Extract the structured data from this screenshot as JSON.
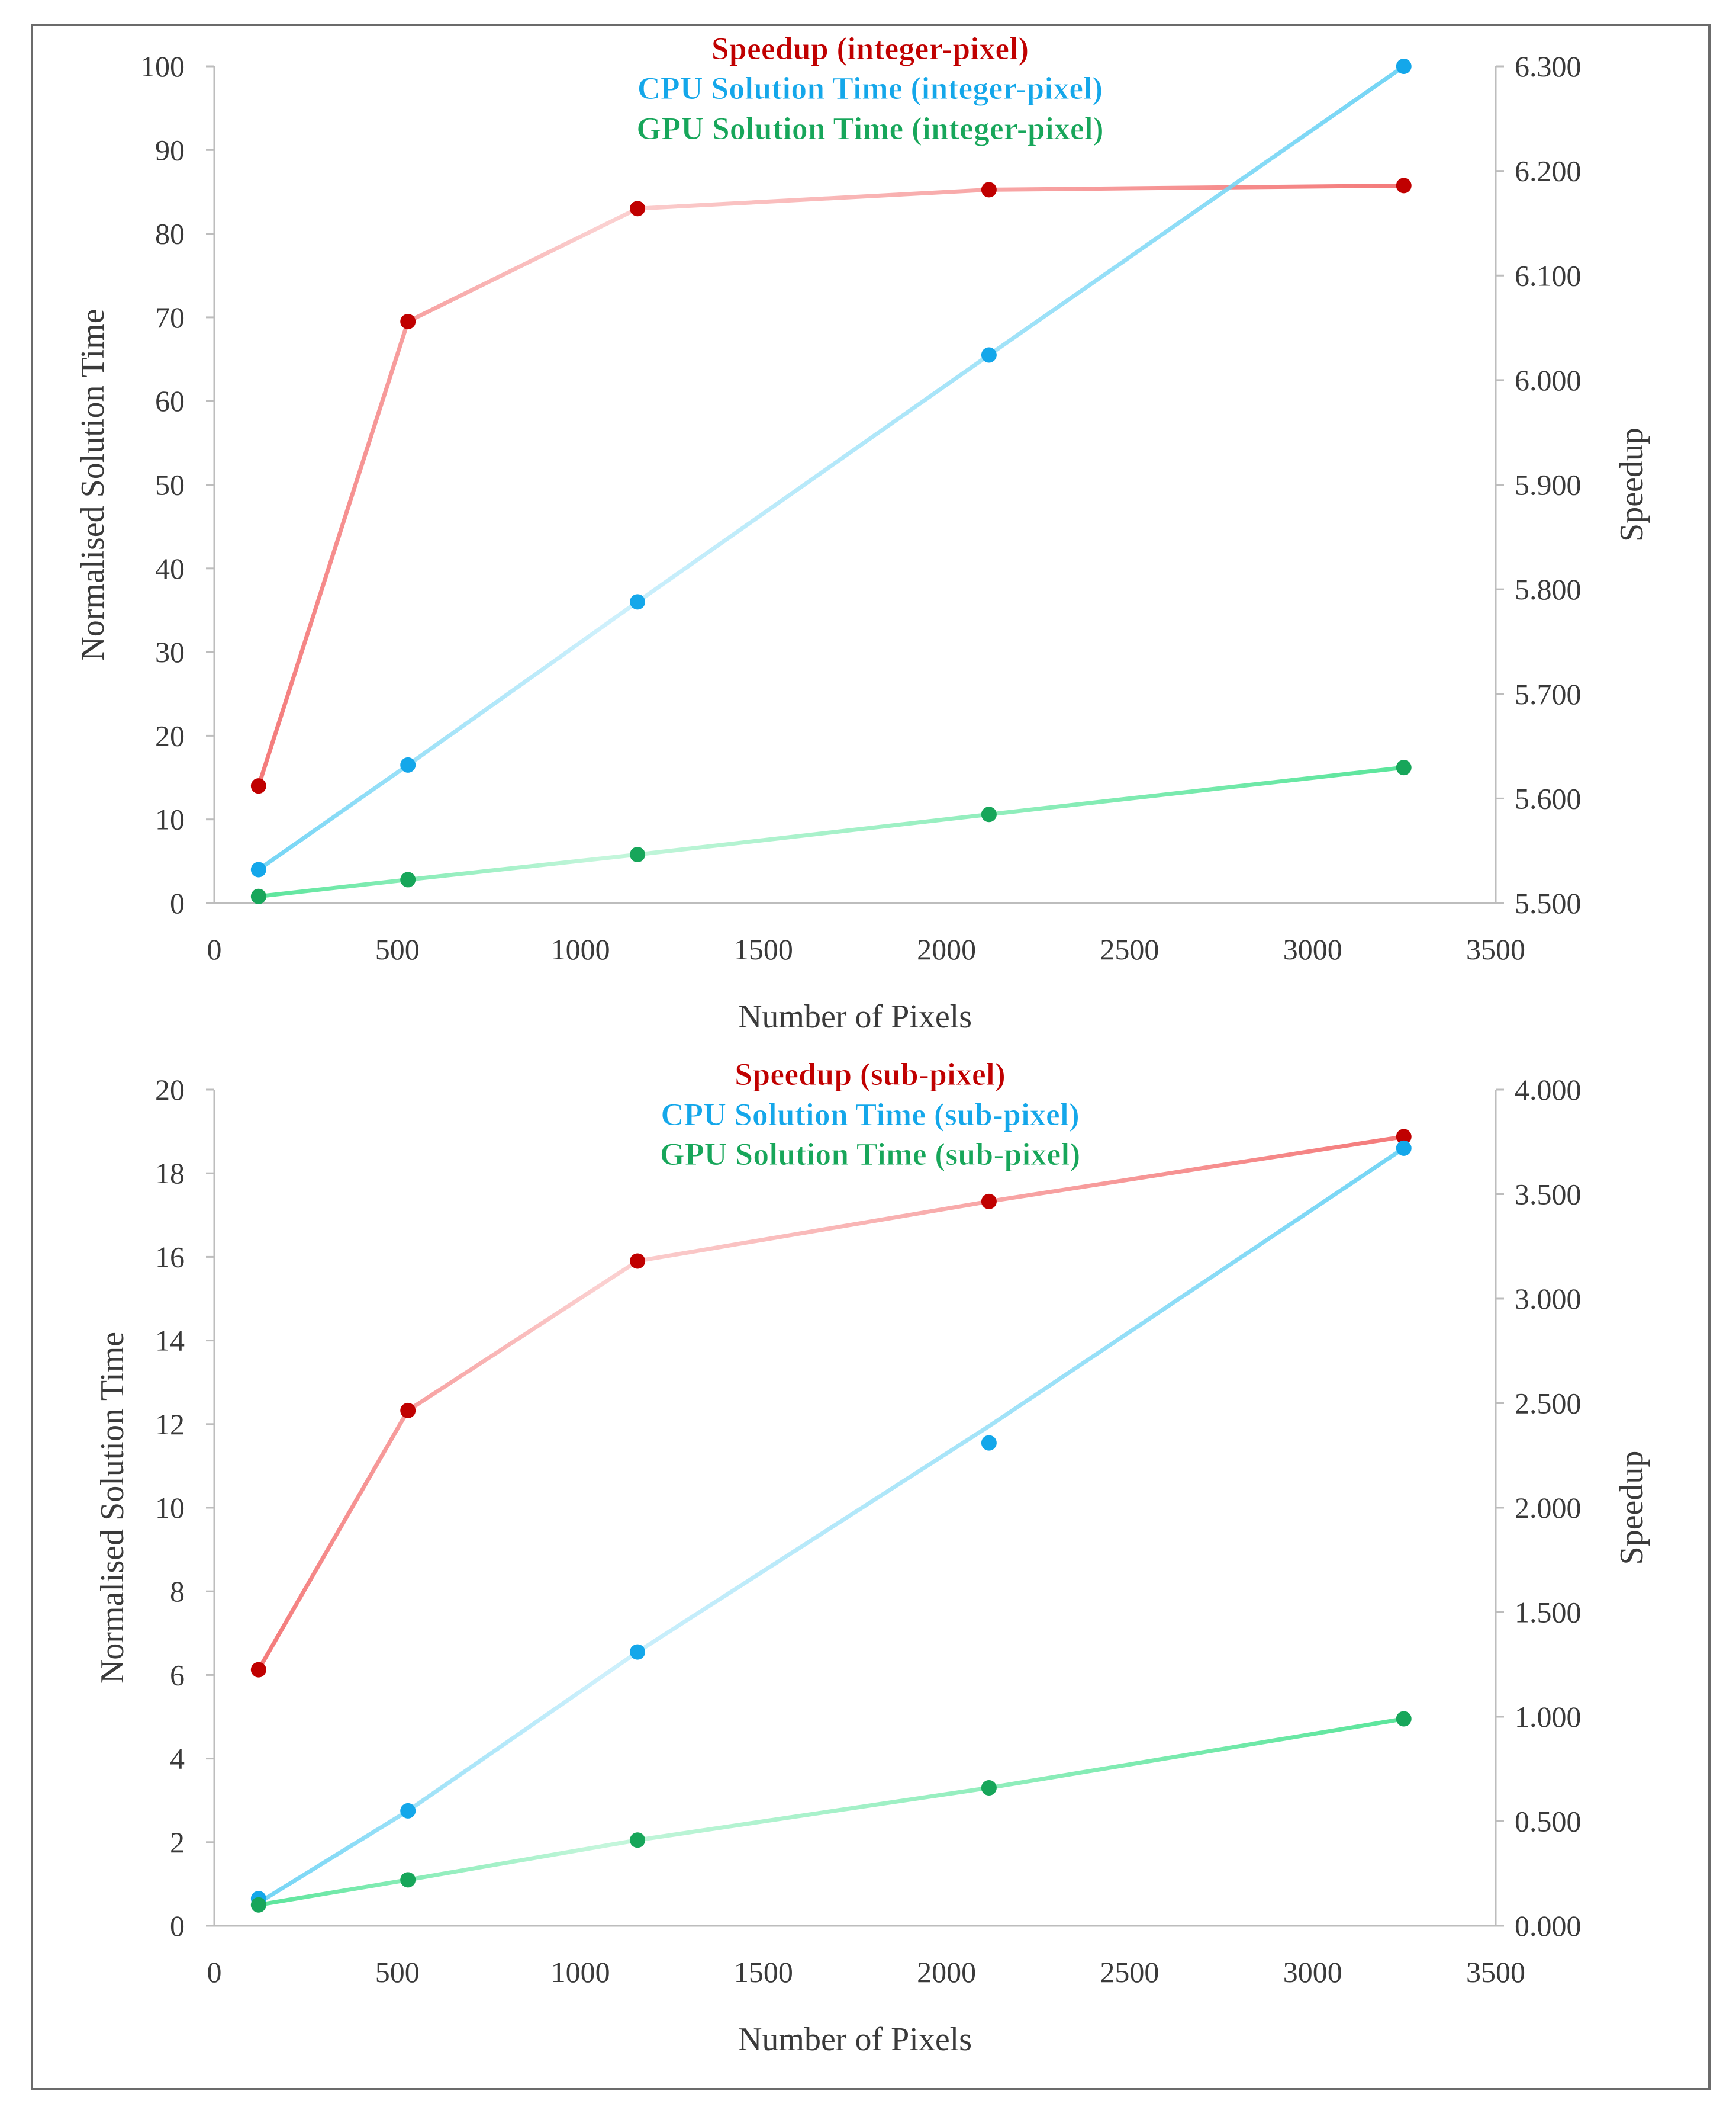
{
  "chart_data": [
    {
      "type": "line",
      "title": "",
      "xlabel": "Number of Pixels",
      "ylabel": "Normalised Solution Time",
      "y2label": "Speedup",
      "xlim": [
        0,
        3500
      ],
      "ylim": [
        0,
        100
      ],
      "y2lim": [
        5.5,
        6.3
      ],
      "xticks": [
        "0",
        "500",
        "1000",
        "1500",
        "2000",
        "2500",
        "3000",
        "3500"
      ],
      "yticks": [
        "0",
        "10",
        "20",
        "30",
        "40",
        "50",
        "60",
        "70",
        "80",
        "90",
        "100"
      ],
      "y2ticks": [
        "5.500",
        "5.600",
        "5.700",
        "5.800",
        "5.900",
        "6.000",
        "6.100",
        "6.200",
        "6.300"
      ],
      "x": [
        121,
        529,
        1156,
        2116,
        3249
      ],
      "legend_position": "top-center",
      "series": [
        {
          "name": "Speedup (integer-pixel)",
          "axis": "right",
          "color": "#c00000",
          "line_color": "#f47a7a",
          "values": [
            5.612,
            6.056,
            6.164,
            6.182,
            6.186
          ]
        },
        {
          "name": "CPU Solution Time (integer-pixel)",
          "axis": "left",
          "color": "#14a7ea",
          "line_color": "#74d5f5",
          "values": [
            4.0,
            16.5,
            36.0,
            65.5,
            100.0
          ]
        },
        {
          "name": "GPU Solution Time (integer-pixel)",
          "axis": "left",
          "color": "#17a65a",
          "line_color": "#5ae59b",
          "values": [
            0.8,
            2.8,
            5.8,
            10.6,
            16.2
          ]
        }
      ]
    },
    {
      "type": "line",
      "title": "",
      "xlabel": "Number of Pixels",
      "ylabel": "Normalised Solution Time",
      "y2label": "Speedup",
      "xlim": [
        0,
        3500
      ],
      "ylim": [
        0,
        20
      ],
      "y2lim": [
        0,
        4
      ],
      "xticks": [
        "0",
        "500",
        "1000",
        "1500",
        "2000",
        "2500",
        "3000",
        "3500"
      ],
      "yticks": [
        "0",
        "2",
        "4",
        "6",
        "8",
        "10",
        "12",
        "14",
        "16",
        "18",
        "20"
      ],
      "y2ticks": [
        "0.000",
        "0.500",
        "1.000",
        "1.500",
        "2.000",
        "2.500",
        "3.000",
        "3.500",
        "4.000"
      ],
      "x": [
        121,
        529,
        1156,
        2116,
        3249
      ],
      "legend_position": "top-center",
      "series": [
        {
          "name": "Speedup (sub-pixel)",
          "axis": "right",
          "color": "#c00000",
          "line_color": "#f47a7a",
          "values": [
            1.225,
            2.465,
            3.18,
            3.465,
            3.775
          ]
        },
        {
          "name": "CPU Solution Time (sub-pixel)",
          "axis": "left",
          "color": "#14a7ea",
          "line_color": "#74d5f5",
          "values": [
            0.65,
            2.75,
            6.55,
            11.55,
            18.6
          ],
          "line_values": [
            0.55,
            2.75,
            6.55,
            11.95,
            18.6
          ]
        },
        {
          "name": "GPU Solution Time (sub-pixel)",
          "axis": "left",
          "color": "#17a65a",
          "line_color": "#5ae59b",
          "values": [
            0.5,
            1.1,
            2.05,
            3.3,
            4.95
          ]
        }
      ]
    }
  ]
}
